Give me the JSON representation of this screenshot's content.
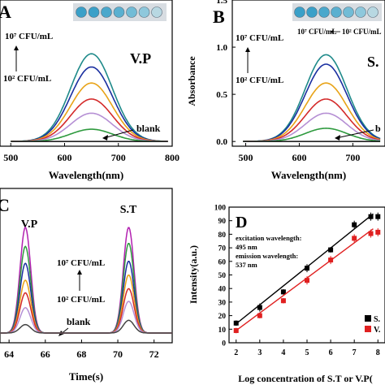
{
  "chart_data": [
    {
      "panel": "A",
      "type": "line",
      "tag": "V.P",
      "xlabel": "Wavelength(nm)",
      "ylabel": "",
      "xlim": [
        480,
        800
      ],
      "ylim": [
        -0.05,
        1.5
      ],
      "x_ticks": [
        "500",
        "600",
        "700",
        "800"
      ],
      "conc_top": "10⁷ CFU/mL",
      "conc_bottom": "10² CFU/mL",
      "arrow_label": "blank",
      "peak_x": 650,
      "series": [
        {
          "color": "#1f8a8a",
          "peak": 0.93
        },
        {
          "color": "#1a2fa0",
          "peak": 0.79
        },
        {
          "color": "#e8a317",
          "peak": 0.62
        },
        {
          "color": "#d42a2a",
          "peak": 0.45
        },
        {
          "color": "#b58fd4",
          "peak": 0.3
        },
        {
          "color": "#2e9a3e",
          "peak": 0.13
        },
        {
          "color": "#222222",
          "peak": 0.0
        }
      ]
    },
    {
      "panel": "B",
      "type": "line",
      "tag": "S.",
      "xlabel": "Wavelength(nm)",
      "ylabel": "Absorbance",
      "xlim": [
        475,
        760
      ],
      "ylim": [
        -0.05,
        1.5
      ],
      "x_ticks": [
        "500",
        "600",
        "700"
      ],
      "y_ticks": [
        "0.0",
        "0.5",
        "1.0",
        "1.5"
      ],
      "conc_top": "10⁷ CFU/mL",
      "conc_bottom": "10² CFU/mL",
      "strip_left": "10⁷ CFU/mL",
      "strip_right": "10² CFU/mL",
      "arrow_label": "b",
      "peak_x": 650,
      "series": [
        {
          "color": "#1f8a8a",
          "peak": 0.92
        },
        {
          "color": "#1a2fa0",
          "peak": 0.82
        },
        {
          "color": "#e8a317",
          "peak": 0.62
        },
        {
          "color": "#d42a2a",
          "peak": 0.45
        },
        {
          "color": "#b58fd4",
          "peak": 0.3
        },
        {
          "color": "#2e9a3e",
          "peak": 0.14
        },
        {
          "color": "#222222",
          "peak": 0.0
        }
      ]
    },
    {
      "panel": "C",
      "type": "line",
      "xlabel": "Time(s)",
      "xlim": [
        63.5,
        73
      ],
      "x_ticks": [
        "64",
        "66",
        "68",
        "70",
        "72"
      ],
      "conc_top": "10⁷ CFU/mL",
      "conc_bottom": "10² CFU/mL",
      "blank_label": "blank",
      "peak1_label": "V.P",
      "peak2_label": "S.T",
      "peak1_x": 64.9,
      "peak2_x": 70.6,
      "series": [
        {
          "color": "#b21fb0",
          "h1": 1.0,
          "h2": 1.0
        },
        {
          "color": "#2e9a3e",
          "h1": 0.82,
          "h2": 0.85
        },
        {
          "color": "#1a2fa0",
          "h1": 0.66,
          "h2": 0.68
        },
        {
          "color": "#e8a317",
          "h1": 0.5,
          "h2": 0.55
        },
        {
          "color": "#d42a2a",
          "h1": 0.38,
          "h2": 0.42
        },
        {
          "color": "#b58fd4",
          "h1": 0.24,
          "h2": 0.3
        },
        {
          "color": "#444444",
          "h1": 0.08,
          "h2": 0.12
        }
      ]
    },
    {
      "panel": "D",
      "type": "scatter",
      "xlabel": "Log concentration of S.T or V.P(",
      "ylabel": "Intensity(a.u.)",
      "xlim": [
        1.7,
        8.3
      ],
      "ylim": [
        0,
        100
      ],
      "x_ticks": [
        "2",
        "3",
        "4",
        "5",
        "6",
        "7",
        "8"
      ],
      "y_ticks": [
        "0",
        "10",
        "20",
        "30",
        "40",
        "50",
        "60",
        "70",
        "80",
        "90",
        "100"
      ],
      "annotation_1": "excitation wavelength:",
      "annotation_2": "495 nm",
      "annotation_3": "emission wavelength:",
      "annotation_4": "537 nm",
      "series": [
        {
          "name": "S.",
          "color": "#000000",
          "x": [
            2,
            3,
            4,
            5,
            6,
            7,
            7.7,
            8
          ],
          "y": [
            14.5,
            26,
            37.5,
            55,
            68.5,
            87,
            93,
            93
          ],
          "err": [
            2,
            3,
            2,
            3,
            2,
            3,
            3,
            3
          ],
          "fit": [
            [
              2,
              14
            ],
            [
              7.8,
              95
            ]
          ]
        },
        {
          "name": "V.",
          "color": "#e02020",
          "x": [
            2,
            3,
            4,
            5,
            6,
            7,
            7.7,
            8
          ],
          "y": [
            9,
            20,
            31,
            46,
            61,
            77,
            80.5,
            81.5
          ],
          "err": [
            2,
            2,
            2,
            3,
            3,
            3,
            3,
            3
          ],
          "fit": [
            [
              2,
              9
            ],
            [
              7.8,
              84
            ]
          ]
        }
      ]
    }
  ]
}
